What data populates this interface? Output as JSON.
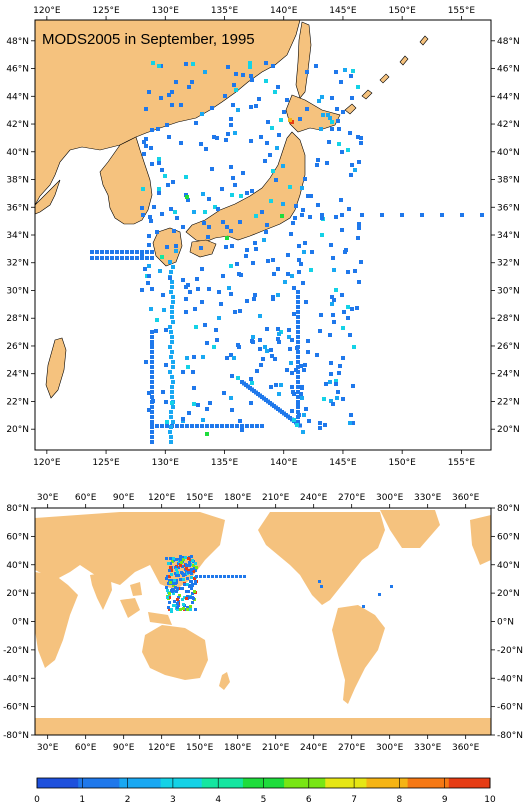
{
  "title": "MODS2005 in September, 1995",
  "colors": {
    "land": "#f5c27e",
    "ocean": "#ffffff",
    "frame": "#000000"
  },
  "regional_map": {
    "lon_range": [
      119,
      157.5
    ],
    "lat_range": [
      18.5,
      49.5
    ],
    "lon_labels": [
      "120°E",
      "125°E",
      "130°E",
      "135°E",
      "140°E",
      "145°E",
      "150°E",
      "155°E"
    ],
    "lat_labels": [
      "20°N",
      "22°N",
      "24°N",
      "26°N",
      "28°N",
      "30°N",
      "32°N",
      "34°N",
      "36°N",
      "38°N",
      "40°N",
      "42°N",
      "44°N",
      "46°N",
      "48°N"
    ]
  },
  "global_map": {
    "lon_labels": [
      "30°E",
      "60°E",
      "90°E",
      "120°E",
      "150°E",
      "180°E",
      "210°E",
      "240°E",
      "270°E",
      "300°E",
      "330°E",
      "360°E"
    ],
    "lat_labels": [
      "80°N",
      "60°N",
      "40°N",
      "20°N",
      "0°N",
      "-20°N",
      "-40°N",
      "-60°N",
      "-80°N"
    ]
  },
  "colorbar": {
    "labels": [
      "0",
      "1",
      "2",
      "3",
      "4",
      "5",
      "6",
      "7",
      "8",
      "9",
      "10"
    ],
    "colors": [
      "#1e50dc",
      "#1f78eb",
      "#19a8f2",
      "#14d2e6",
      "#14e6a0",
      "#1edc3c",
      "#78e614",
      "#e6e614",
      "#f5b414",
      "#f57814",
      "#e63c14"
    ]
  }
}
